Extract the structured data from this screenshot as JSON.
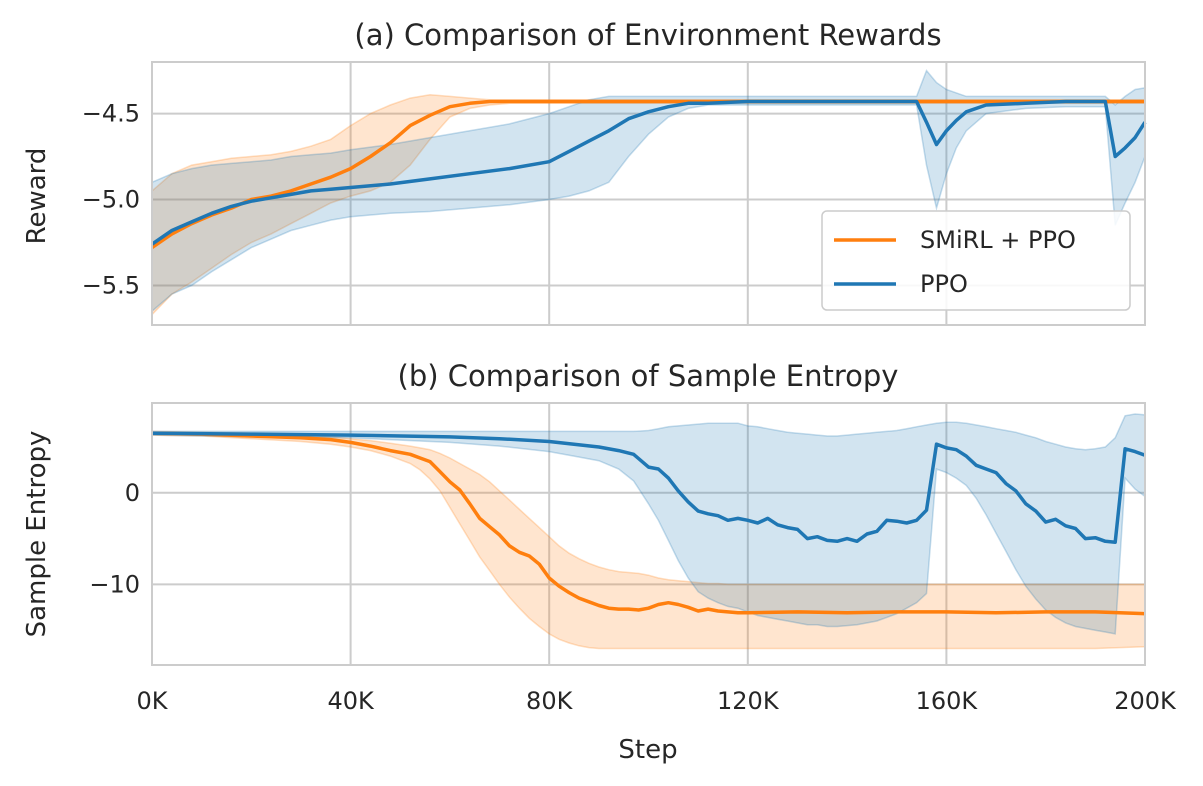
{
  "chart_data": [
    {
      "type": "line",
      "title": "(a) Comparison of Environment Rewards",
      "xlabel": "",
      "ylabel": "Reward",
      "xlim": [
        0,
        200000
      ],
      "ylim": [
        -5.73,
        -4.2
      ],
      "xticks": [
        0,
        40000,
        80000,
        120000,
        160000,
        200000
      ],
      "xtick_labels": [
        "",
        "",
        "",
        "",
        "",
        ""
      ],
      "yticks": [
        -4.5,
        -5.0,
        -5.5
      ],
      "ytick_labels": [
        "−4.5",
        "−5.0",
        "−5.5"
      ],
      "grid": true,
      "legend": {
        "placement": "lower-right",
        "entries": [
          "SMiRL + PPO",
          "PPO"
        ]
      },
      "series": [
        {
          "name": "SMiRL + PPO",
          "color": "#ff7f0e",
          "x": [
            0,
            4000,
            8000,
            12000,
            16000,
            20000,
            24000,
            28000,
            32000,
            36000,
            40000,
            44000,
            48000,
            52000,
            56000,
            60000,
            64000,
            68000,
            72000,
            76000,
            80000,
            90000,
            100000,
            120000,
            140000,
            160000,
            180000,
            200000
          ],
          "y": [
            -5.28,
            -5.2,
            -5.14,
            -5.09,
            -5.05,
            -5.0,
            -4.98,
            -4.95,
            -4.91,
            -4.87,
            -4.82,
            -4.75,
            -4.67,
            -4.57,
            -4.51,
            -4.46,
            -4.44,
            -4.43,
            -4.43,
            -4.43,
            -4.43,
            -4.43,
            -4.43,
            -4.43,
            -4.43,
            -4.43,
            -4.43,
            -4.43
          ],
          "upper": [
            -4.95,
            -4.85,
            -4.8,
            -4.78,
            -4.76,
            -4.75,
            -4.74,
            -4.72,
            -4.69,
            -4.65,
            -4.57,
            -4.5,
            -4.45,
            -4.41,
            -4.39,
            -4.4,
            -4.41,
            -4.42,
            -4.42,
            -4.42,
            -4.42,
            -4.42,
            -4.42,
            -4.42,
            -4.42,
            -4.42,
            -4.42,
            -4.42
          ],
          "lower": [
            -5.67,
            -5.55,
            -5.48,
            -5.4,
            -5.32,
            -5.25,
            -5.2,
            -5.14,
            -5.08,
            -5.02,
            -4.98,
            -4.95,
            -4.9,
            -4.8,
            -4.65,
            -4.52,
            -4.47,
            -4.45,
            -4.44,
            -4.44,
            -4.44,
            -4.44,
            -4.44,
            -4.44,
            -4.44,
            -4.44,
            -4.44,
            -4.44
          ]
        },
        {
          "name": "PPO",
          "color": "#1f77b4",
          "x": [
            0,
            4000,
            8000,
            12000,
            16000,
            20000,
            24000,
            28000,
            32000,
            36000,
            40000,
            48000,
            56000,
            64000,
            72000,
            80000,
            84000,
            88000,
            92000,
            96000,
            100000,
            104000,
            108000,
            112000,
            120000,
            140000,
            154000,
            156000,
            158000,
            160000,
            162000,
            164000,
            168000,
            176000,
            184000,
            192000,
            194000,
            196000,
            198000,
            200000
          ],
          "y": [
            -5.26,
            -5.18,
            -5.13,
            -5.08,
            -5.04,
            -5.01,
            -4.99,
            -4.97,
            -4.95,
            -4.94,
            -4.93,
            -4.91,
            -4.88,
            -4.85,
            -4.82,
            -4.78,
            -4.72,
            -4.66,
            -4.6,
            -4.53,
            -4.49,
            -4.46,
            -4.44,
            -4.44,
            -4.43,
            -4.43,
            -4.43,
            -4.55,
            -4.68,
            -4.6,
            -4.54,
            -4.49,
            -4.45,
            -4.44,
            -4.43,
            -4.43,
            -4.75,
            -4.7,
            -4.64,
            -4.55
          ],
          "upper": [
            -4.9,
            -4.85,
            -4.82,
            -4.8,
            -4.79,
            -4.78,
            -4.77,
            -4.75,
            -4.74,
            -4.73,
            -4.71,
            -4.68,
            -4.64,
            -4.6,
            -4.56,
            -4.5,
            -4.46,
            -4.42,
            -4.4,
            -4.4,
            -4.4,
            -4.4,
            -4.4,
            -4.4,
            -4.4,
            -4.4,
            -4.4,
            -4.25,
            -4.32,
            -4.36,
            -4.38,
            -4.4,
            -4.4,
            -4.4,
            -4.4,
            -4.4,
            -4.45,
            -4.4,
            -4.36,
            -4.35
          ],
          "lower": [
            -5.65,
            -5.55,
            -5.5,
            -5.42,
            -5.35,
            -5.28,
            -5.23,
            -5.18,
            -5.15,
            -5.12,
            -5.1,
            -5.08,
            -5.07,
            -5.05,
            -5.03,
            -5.0,
            -4.98,
            -4.95,
            -4.9,
            -4.75,
            -4.62,
            -4.52,
            -4.47,
            -4.45,
            -4.45,
            -4.45,
            -4.45,
            -4.8,
            -5.05,
            -4.85,
            -4.7,
            -4.6,
            -4.5,
            -4.47,
            -4.46,
            -4.46,
            -5.15,
            -5.02,
            -4.9,
            -4.75
          ]
        }
      ]
    },
    {
      "type": "line",
      "title": "(b) Comparison of Sample Entropy",
      "xlabel": "Step",
      "ylabel": "Sample Entropy",
      "xlim": [
        0,
        200000
      ],
      "ylim": [
        -18.8,
        9.8
      ],
      "xticks": [
        0,
        40000,
        80000,
        120000,
        160000,
        200000
      ],
      "xtick_labels": [
        "0K",
        "40K",
        "80K",
        "120K",
        "160K",
        "200K"
      ],
      "yticks": [
        0,
        -10
      ],
      "ytick_labels": [
        "0",
        "−10"
      ],
      "grid": true,
      "series": [
        {
          "name": "SMiRL + PPO",
          "color": "#ff7f0e",
          "x": [
            0,
            10000,
            20000,
            30000,
            36000,
            40000,
            44000,
            48000,
            52000,
            54000,
            56000,
            58000,
            60000,
            62000,
            64000,
            66000,
            68000,
            70000,
            72000,
            74000,
            76000,
            78000,
            80000,
            82000,
            84000,
            86000,
            88000,
            90000,
            92000,
            94000,
            96000,
            98000,
            100000,
            102000,
            104000,
            106000,
            108000,
            110000,
            112000,
            114000,
            116000,
            118000,
            120000,
            130000,
            140000,
            150000,
            160000,
            170000,
            180000,
            190000,
            200000
          ],
          "y": [
            6.5,
            6.4,
            6.2,
            6.0,
            5.8,
            5.5,
            5.1,
            4.6,
            4.2,
            3.8,
            3.4,
            2.3,
            1.2,
            0.3,
            -1.2,
            -2.8,
            -3.7,
            -4.6,
            -5.8,
            -6.5,
            -6.9,
            -7.8,
            -9.3,
            -10.2,
            -10.9,
            -11.5,
            -11.9,
            -12.3,
            -12.6,
            -12.7,
            -12.7,
            -12.8,
            -12.6,
            -12.2,
            -12.0,
            -12.2,
            -12.5,
            -12.9,
            -12.7,
            -12.9,
            -13.0,
            -13.1,
            -13.1,
            -13.0,
            -13.1,
            -13.0,
            -13.0,
            -13.1,
            -13.0,
            -13.0,
            -13.2
          ],
          "upper": [
            6.7,
            6.6,
            6.5,
            6.3,
            6.1,
            5.9,
            5.7,
            5.4,
            5.1,
            4.9,
            4.7,
            4.3,
            3.8,
            3.2,
            2.6,
            2.0,
            1.2,
            0.2,
            -0.8,
            -1.8,
            -2.8,
            -3.8,
            -4.8,
            -5.8,
            -6.6,
            -7.2,
            -7.7,
            -8.1,
            -8.4,
            -8.6,
            -8.7,
            -8.8,
            -9.0,
            -9.3,
            -9.5,
            -9.6,
            -9.7,
            -9.8,
            -9.9,
            -9.9,
            -10.0,
            -10.0,
            -10.0,
            -10.0,
            -10.0,
            -10.0,
            -10.0,
            -10.0,
            -10.0,
            -10.0,
            -10.0
          ],
          "lower": [
            6.3,
            6.2,
            5.9,
            5.6,
            5.3,
            5.0,
            4.6,
            4.0,
            3.2,
            2.5,
            1.5,
            0.2,
            -1.6,
            -3.4,
            -5.2,
            -7.0,
            -8.5,
            -10.0,
            -11.4,
            -12.6,
            -13.7,
            -14.6,
            -15.4,
            -16.0,
            -16.4,
            -16.7,
            -16.9,
            -17.0,
            -17.0,
            -17.0,
            -17.0,
            -17.0,
            -17.0,
            -17.0,
            -17.0,
            -17.0,
            -17.0,
            -17.0,
            -17.0,
            -17.0,
            -17.0,
            -17.0,
            -17.0,
            -17.0,
            -17.0,
            -17.0,
            -17.0,
            -17.0,
            -17.0,
            -17.0,
            -16.8
          ]
        },
        {
          "name": "PPO",
          "color": "#1f77b4",
          "x": [
            0,
            20000,
            40000,
            60000,
            70000,
            80000,
            85000,
            90000,
            94000,
            97000,
            100000,
            102000,
            104000,
            106000,
            108000,
            110000,
            112000,
            114000,
            116000,
            118000,
            120000,
            122000,
            124000,
            126000,
            128000,
            130000,
            132000,
            134000,
            136000,
            138000,
            140000,
            142000,
            144000,
            146000,
            148000,
            150000,
            152000,
            154000,
            156000,
            158000,
            160000,
            162000,
            164000,
            166000,
            168000,
            170000,
            172000,
            174000,
            176000,
            178000,
            180000,
            182000,
            184000,
            186000,
            188000,
            190000,
            192000,
            194000,
            196000,
            198000,
            200000
          ],
          "y": [
            6.5,
            6.4,
            6.3,
            6.1,
            5.9,
            5.6,
            5.3,
            5.0,
            4.6,
            4.2,
            2.8,
            2.6,
            1.6,
            0.2,
            -1.0,
            -2.0,
            -2.3,
            -2.5,
            -3.0,
            -2.8,
            -3.0,
            -3.3,
            -2.8,
            -3.5,
            -3.8,
            -4.0,
            -5.0,
            -4.8,
            -5.2,
            -5.3,
            -5.0,
            -5.3,
            -4.5,
            -4.2,
            -3.0,
            -3.1,
            -3.3,
            -3.0,
            -1.9,
            5.3,
            4.9,
            4.7,
            4.0,
            3.0,
            2.6,
            2.2,
            1.0,
            0.2,
            -1.2,
            -2.0,
            -3.2,
            -2.9,
            -3.6,
            -3.9,
            -5.0,
            -4.9,
            -5.3,
            -5.4,
            4.8,
            4.5,
            4.1
          ],
          "upper": [
            6.7,
            6.7,
            6.7,
            6.7,
            6.7,
            6.7,
            6.7,
            6.7,
            6.7,
            6.7,
            6.8,
            7.0,
            7.2,
            7.3,
            7.4,
            7.5,
            7.6,
            7.6,
            7.6,
            7.6,
            7.3,
            7.2,
            7.0,
            6.8,
            6.6,
            6.5,
            6.4,
            6.3,
            6.2,
            6.2,
            6.3,
            6.4,
            6.5,
            6.6,
            6.7,
            6.8,
            7.0,
            7.2,
            7.4,
            7.6,
            7.7,
            7.7,
            7.6,
            7.4,
            7.2,
            7.0,
            6.8,
            6.6,
            6.3,
            6.0,
            5.6,
            5.3,
            5.0,
            4.8,
            4.7,
            4.8,
            5.0,
            6.0,
            8.4,
            8.6,
            8.5
          ],
          "lower": [
            6.3,
            6.1,
            6.0,
            5.5,
            5.1,
            4.5,
            4.0,
            3.5,
            2.6,
            1.3,
            -1.2,
            -3.0,
            -5.2,
            -7.4,
            -9.3,
            -10.8,
            -11.5,
            -12.0,
            -12.4,
            -12.6,
            -13.0,
            -13.4,
            -13.6,
            -13.8,
            -14.0,
            -14.2,
            -14.4,
            -14.4,
            -14.6,
            -14.6,
            -14.5,
            -14.4,
            -14.2,
            -14.0,
            -13.6,
            -13.2,
            -12.6,
            -12.0,
            -11.0,
            2.6,
            2.2,
            1.6,
            0.8,
            -0.6,
            -2.4,
            -4.4,
            -6.4,
            -8.4,
            -10.2,
            -11.6,
            -12.8,
            -13.6,
            -14.2,
            -14.6,
            -14.8,
            -15.0,
            -15.2,
            -15.4,
            1.6,
            0.4,
            -0.4
          ]
        }
      ]
    }
  ]
}
